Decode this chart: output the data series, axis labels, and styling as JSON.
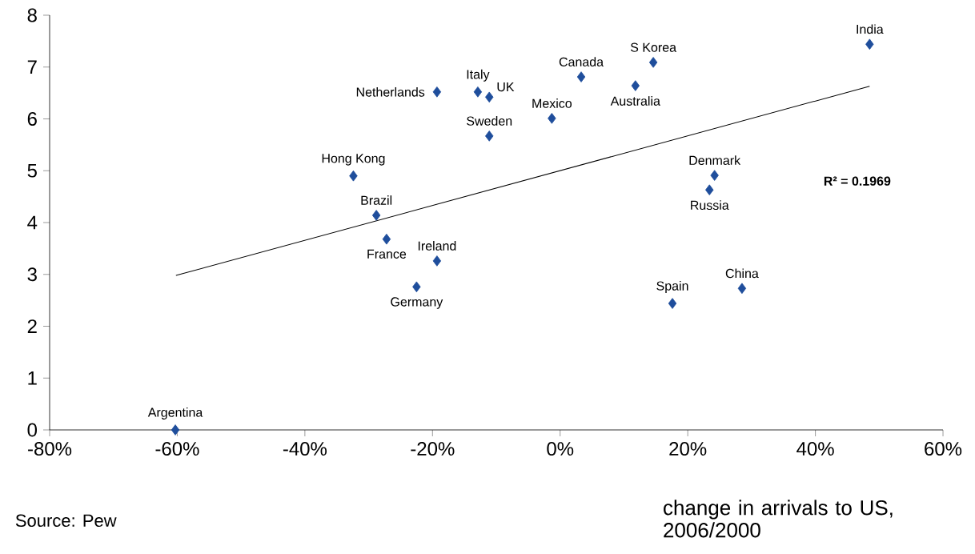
{
  "chart_data": {
    "type": "scatter",
    "xlabel": "change in arrivals to US, 2006/2000",
    "xlim": [
      -80,
      60
    ],
    "ylim": [
      0,
      8
    ],
    "xticks": [
      {
        "value": -80,
        "label": "-80%"
      },
      {
        "value": -60,
        "label": "-60%"
      },
      {
        "value": -40,
        "label": "-40%"
      },
      {
        "value": -20,
        "label": "-20%"
      },
      {
        "value": 0,
        "label": "0%"
      },
      {
        "value": 20,
        "label": "20%"
      },
      {
        "value": 40,
        "label": "40%"
      },
      {
        "value": 60,
        "label": "60%"
      }
    ],
    "yticks": [
      0,
      1,
      2,
      3,
      4,
      5,
      6,
      7,
      8
    ],
    "grid": false,
    "marker": "diamond",
    "series": [
      {
        "color": "#1f4e9c",
        "x": [
          -60.3,
          48.5,
          14.6,
          3.3,
          11.8,
          -12.9,
          -11.1,
          -19.3,
          -1.3,
          -11.1,
          -32.4,
          24.2,
          23.4,
          -28.8,
          -27.2,
          -19.3,
          -22.5,
          17.6,
          28.5
        ],
        "values": [
          0,
          7.44,
          7.09,
          6.81,
          6.64,
          6.52,
          6.42,
          6.52,
          6.01,
          5.67,
          4.9,
          4.91,
          4.63,
          4.14,
          3.68,
          3.26,
          2.76,
          2.44,
          2.73
        ]
      },
      {
        "type": "line",
        "marker": "none",
        "color": "#000000",
        "x": [
          -60.2,
          48.5
        ],
        "values": [
          2.98,
          6.63
        ]
      }
    ],
    "annotations": [
      "R² = 0.1969",
      "Source: Pew",
      {
        "text": "Argentina",
        "x": -60.3,
        "y": 0
      },
      {
        "text": "India",
        "x": 48.5,
        "y": 7.44
      },
      {
        "text": "S Korea",
        "x": 14.6,
        "y": 7.09
      },
      {
        "text": "Canada",
        "x": 3.3,
        "y": 6.81
      },
      {
        "text": "Australia",
        "x": 11.8,
        "y": 6.64
      },
      {
        "text": "Italy",
        "x": -12.9,
        "y": 6.52
      },
      {
        "text": "UK",
        "x": -11.1,
        "y": 6.42
      },
      {
        "text": "Netherlands",
        "x": -19.3,
        "y": 6.52
      },
      {
        "text": "Mexico",
        "x": -1.3,
        "y": 6.01
      },
      {
        "text": "Sweden",
        "x": -11.1,
        "y": 5.67
      },
      {
        "text": "Hong Kong",
        "x": -32.4,
        "y": 4.9
      },
      {
        "text": "Denmark",
        "x": 24.2,
        "y": 4.91
      },
      {
        "text": "Russia",
        "x": 23.4,
        "y": 4.63
      },
      {
        "text": "Brazil",
        "x": -28.8,
        "y": 4.14
      },
      {
        "text": "France",
        "x": -27.2,
        "y": 3.68
      },
      {
        "text": "Ireland",
        "x": -19.3,
        "y": 3.26
      },
      {
        "text": "Germany",
        "x": -22.5,
        "y": 2.76
      },
      {
        "text": "Spain",
        "x": 17.6,
        "y": 2.44
      },
      {
        "text": "China",
        "x": 28.5,
        "y": 2.73
      }
    ]
  }
}
